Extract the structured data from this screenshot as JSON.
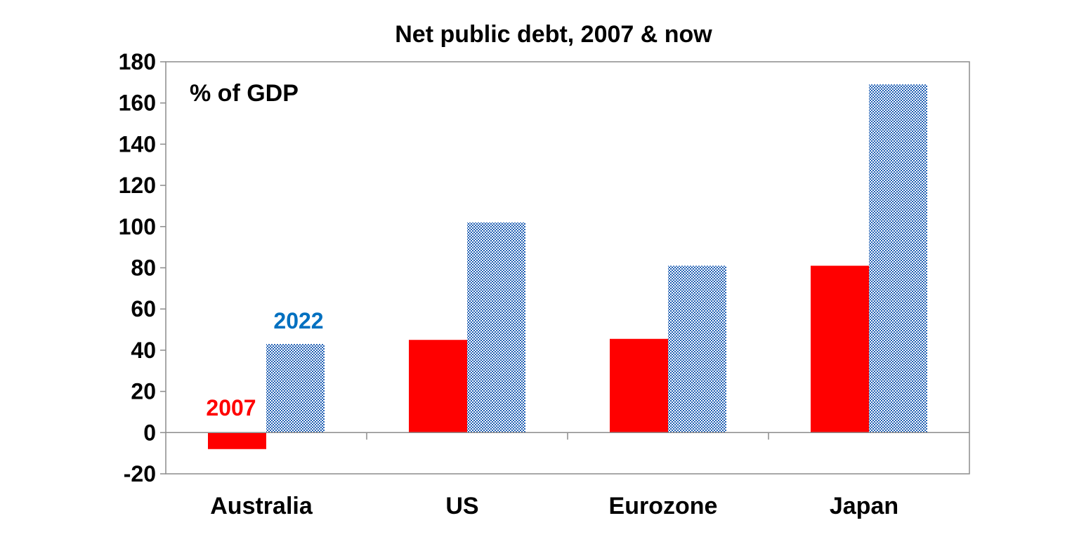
{
  "chart_data": {
    "type": "bar",
    "title": "Net public debt, 2007 & now",
    "unit_label": "% of GDP",
    "categories": [
      "Australia",
      "US",
      "Eurozone",
      "Japan"
    ],
    "ylim": [
      -20,
      180
    ],
    "yticks": [
      -20,
      0,
      20,
      40,
      60,
      80,
      100,
      120,
      140,
      160,
      180
    ],
    "grid": false,
    "series": [
      {
        "name": "2007",
        "values": [
          -8,
          45,
          45.5,
          81
        ],
        "color": "#ff0000",
        "pattern": "solid"
      },
      {
        "name": "2022",
        "values": [
          43,
          102,
          81,
          169
        ],
        "color": "#1f5fb4",
        "pattern": "checker"
      }
    ],
    "series_label_colors": [
      "#ff0000",
      "#0070c0"
    ]
  }
}
